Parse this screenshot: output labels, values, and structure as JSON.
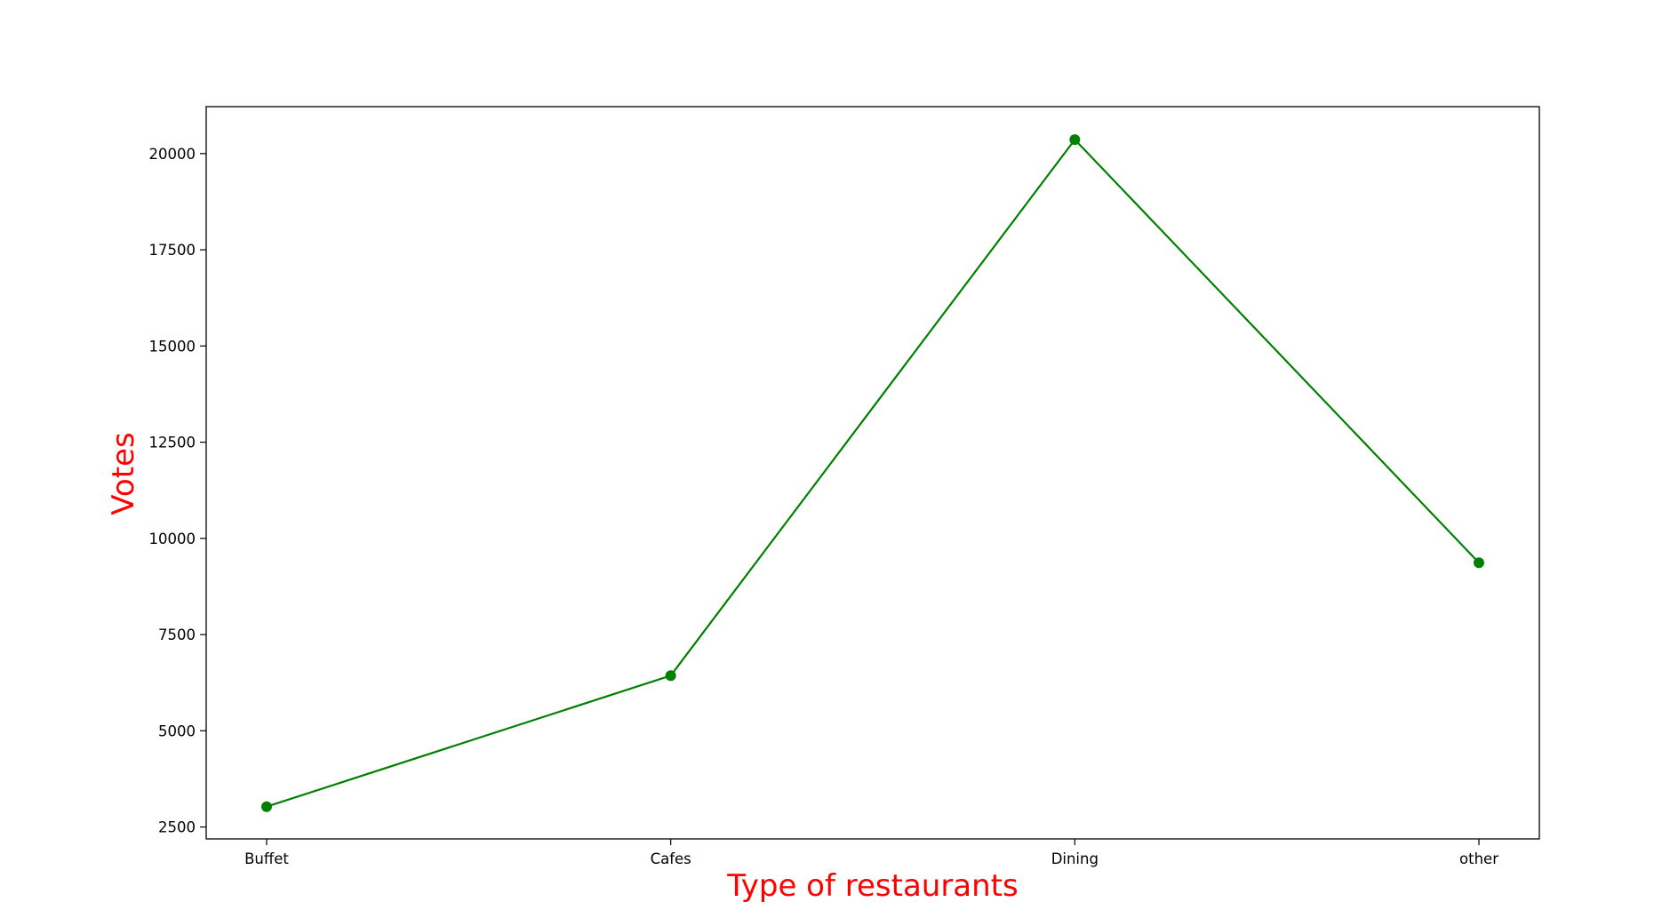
{
  "chart_data": {
    "type": "line",
    "title": "",
    "xlabel": "Type of restaurants",
    "ylabel": "Votes",
    "categories": [
      "Buffet",
      "Cafes",
      "Dining",
      "other"
    ],
    "series": [
      {
        "values": [
          3028,
          6434,
          20363,
          9367
        ],
        "color": "#008000",
        "marker": "circle"
      }
    ],
    "ylim": [
      2190,
      21220
    ],
    "yticks": [
      2500,
      5000,
      7500,
      10000,
      12500,
      15000,
      17500,
      20000
    ],
    "ytick_labels": [
      "2500",
      "5000",
      "7500",
      "10000",
      "12500",
      "15000",
      "17500",
      "20000"
    ],
    "grid": false,
    "legend": "none",
    "label_color": "#ff0000"
  }
}
